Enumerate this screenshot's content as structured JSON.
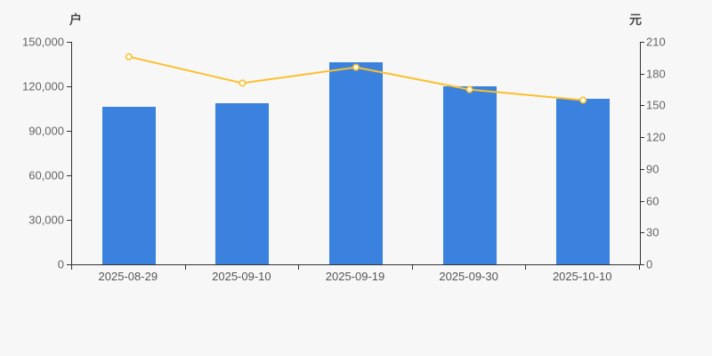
{
  "page": {
    "background": "#f7f7f7",
    "axis_line_color": "#333333",
    "tick_label_color": "#666666",
    "date_label_color": "#555555"
  },
  "chart_data": {
    "type": "bar",
    "subtype": "combo-bar-line-dual-axis",
    "title": "",
    "categories": [
      "2025-08-29",
      "2025-09-10",
      "2025-09-19",
      "2025-09-30",
      "2025-10-10"
    ],
    "series": [
      {
        "id": "bar-series",
        "type": "bar",
        "axis": "left",
        "color": "#3a82de",
        "values": [
          106200,
          108600,
          136400,
          119900,
          111900
        ]
      },
      {
        "id": "line-series",
        "type": "line",
        "axis": "right",
        "color": "#fbc02d",
        "marker_fill": "#ffffff",
        "values": [
          196,
          171,
          186,
          165,
          155
        ]
      }
    ],
    "left_axis": {
      "name": "户",
      "min": 0,
      "max": 150000,
      "step": 30000,
      "tick_labels_top_to_bottom": [
        "150,000",
        "120,000",
        "90,000",
        "60,000",
        "30,000",
        "0"
      ]
    },
    "right_axis": {
      "name": "元",
      "min": 0,
      "max": 210,
      "step": 30,
      "tick_labels_top_to_bottom": [
        "210",
        "180",
        "150",
        "120",
        "90",
        "60",
        "30",
        "0"
      ]
    },
    "grid": false,
    "legend": "none"
  }
}
